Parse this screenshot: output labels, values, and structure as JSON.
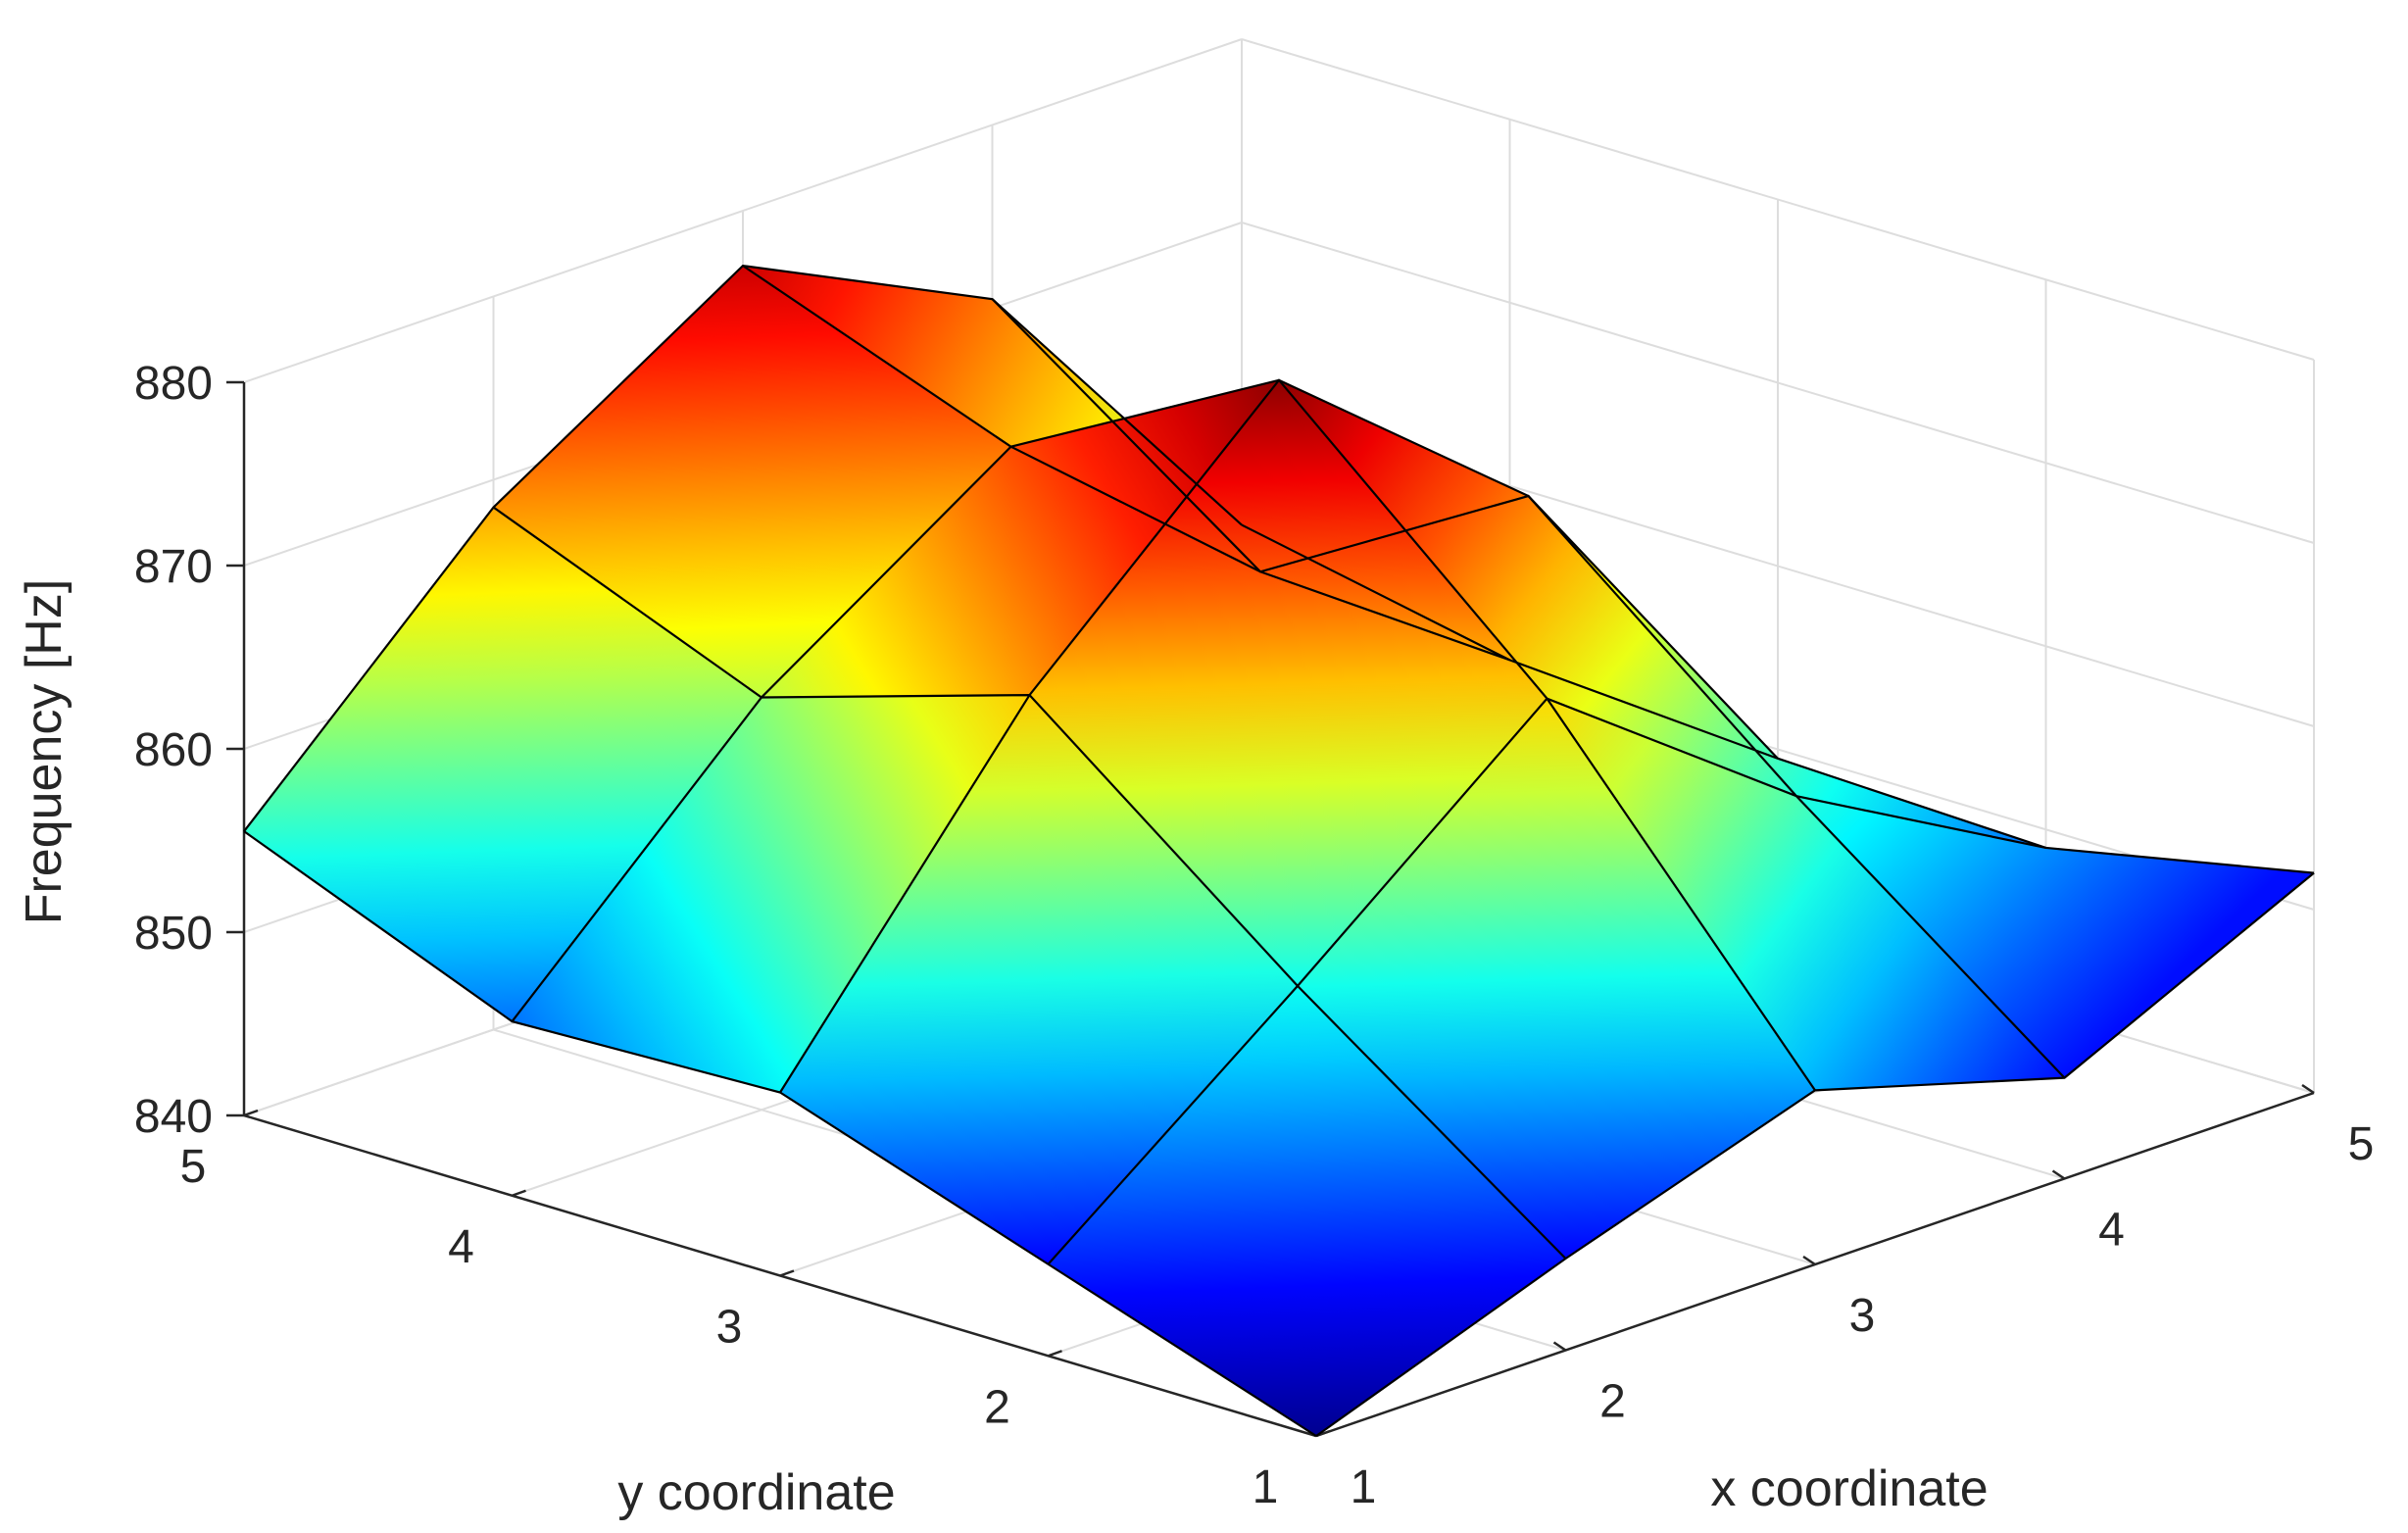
{
  "chart_data": {
    "type": "surface3d",
    "title": "",
    "xlabel": "x coordinate",
    "ylabel": "y coordinate",
    "zlabel": "Frequency [Hz]",
    "x": [
      1,
      2,
      3,
      4,
      5
    ],
    "y": [
      1,
      2,
      3,
      4,
      5
    ],
    "z": [
      [
        840.0,
        845.0,
        849.5,
        845.5,
        852.0
      ],
      [
        845.0,
        855.5,
        866.5,
        856.5,
        849.0
      ],
      [
        850.0,
        867.0,
        879.5,
        868.5,
        849.5
      ],
      [
        849.5,
        862.5,
        871.5,
        860.0,
        850.5
      ],
      [
        855.5,
        868.5,
        877.0,
        870.5,
        853.5
      ]
    ],
    "xlim": [
      1,
      5
    ],
    "ylim": [
      1,
      5
    ],
    "zlim": [
      840,
      880
    ],
    "x_ticks": [
      "1",
      "2",
      "3",
      "4",
      "5"
    ],
    "y_ticks": [
      "1",
      "2",
      "3",
      "4",
      "5"
    ],
    "z_ticks": [
      "840",
      "850",
      "860",
      "870",
      "880"
    ],
    "colormap": "jet",
    "colormap_stops": [
      "#00008F",
      "#0000FF",
      "#00FFFF",
      "#FFFF00",
      "#FF0000",
      "#800000"
    ],
    "grid": true
  }
}
